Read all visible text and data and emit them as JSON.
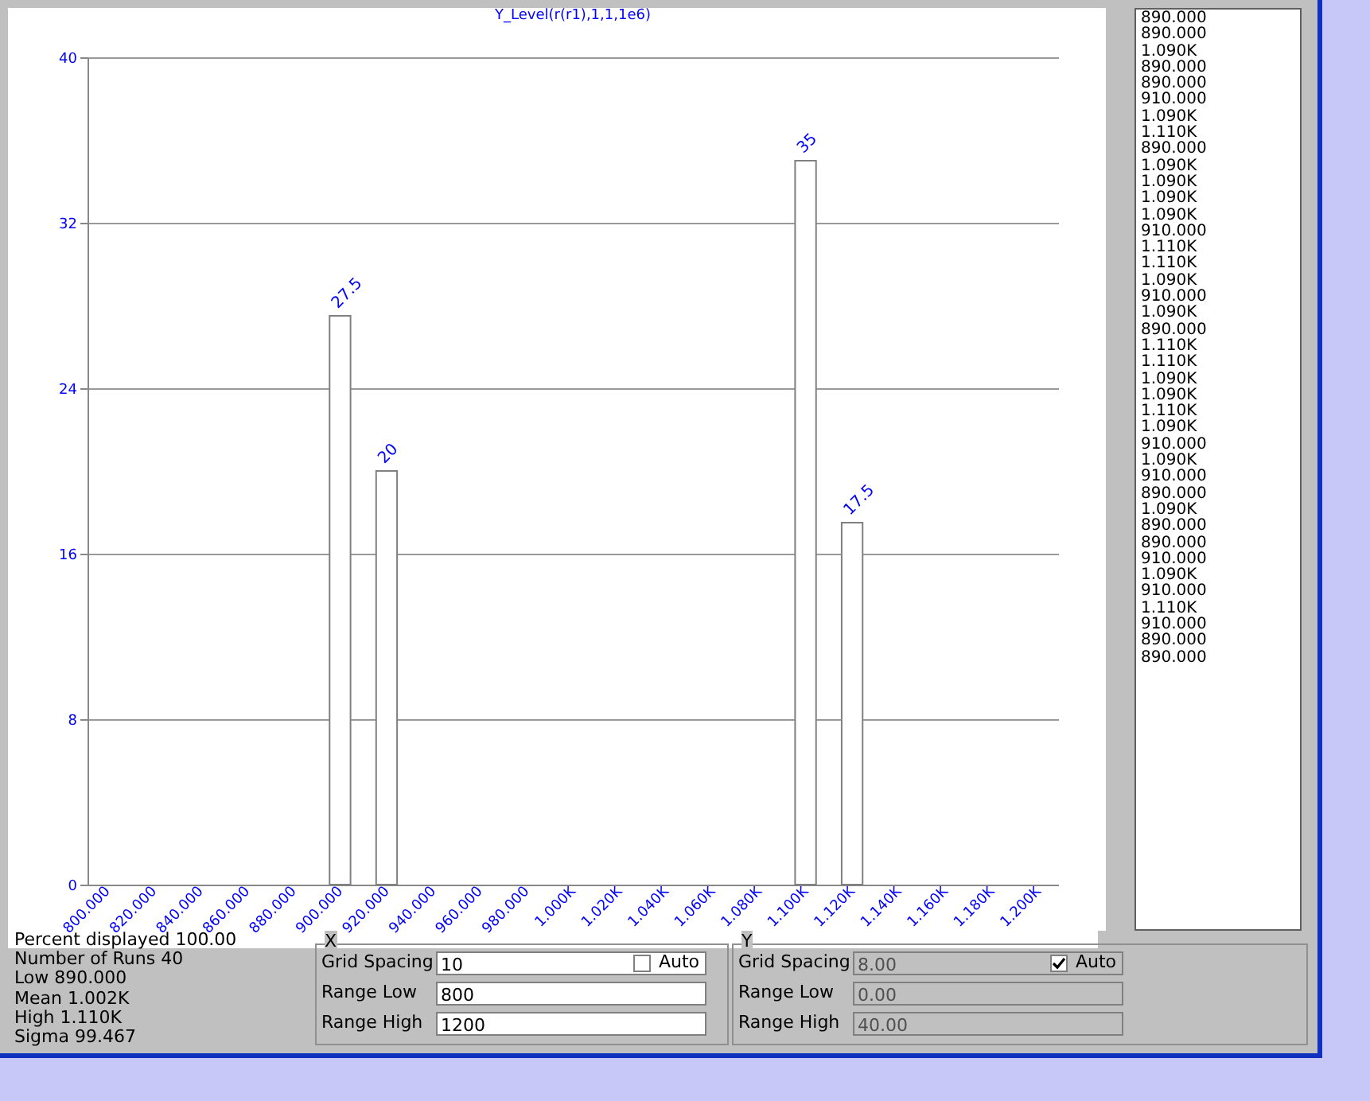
{
  "chart_data": {
    "type": "bar",
    "title": "Y_Level(r(r1),1,1,1e6)",
    "categories": [
      "800.000",
      "820.000",
      "840.000",
      "860.000",
      "880.000",
      "900.000",
      "920.000",
      "940.000",
      "960.000",
      "980.000",
      "1.000K",
      "1.020K",
      "1.040K",
      "1.060K",
      "1.080K",
      "1.100K",
      "1.120K",
      "1.140K",
      "1.160K",
      "1.180K",
      "1.200K"
    ],
    "values": [
      0,
      0,
      0,
      0,
      0,
      27.5,
      20,
      0,
      0,
      0,
      0,
      0,
      0,
      0,
      0,
      35,
      17.5,
      0,
      0,
      0,
      0
    ],
    "value_labels": [
      null,
      null,
      null,
      null,
      null,
      "27.5",
      "20",
      null,
      null,
      null,
      null,
      null,
      null,
      null,
      null,
      "35",
      "17.5",
      null,
      null,
      null,
      null
    ],
    "color": "#ffffff",
    "ylim": [
      0,
      40
    ],
    "yticks": [
      0,
      8,
      16,
      24,
      32,
      40
    ],
    "grid": "y",
    "annotations": [
      "Percent displayed 100.00",
      "Number of Runs 40",
      "Low 890.000",
      "Mean 1.002K",
      "High 1.110K",
      "Sigma 99.467",
      "X",
      "Grid Spacing",
      "10",
      "Range Low",
      "800",
      "Range High",
      "1200",
      "Auto",
      "Y",
      "Grid Spacing",
      "8.00",
      "Range Low",
      "0.00",
      "Range High",
      "40.00",
      "Auto",
      "890.000",
      "890.000",
      "1.090K",
      "890.000",
      "890.000",
      "910.000",
      "1.090K",
      "1.110K",
      "890.000",
      "1.090K",
      "1.090K",
      "1.090K",
      "1.090K",
      "910.000",
      "1.110K",
      "1.110K",
      "1.090K",
      "910.000",
      "1.090K",
      "890.000",
      "1.110K",
      "1.110K",
      "1.090K",
      "1.090K",
      "1.110K",
      "1.090K",
      "910.000",
      "1.090K",
      "910.000",
      "890.000",
      "1.090K",
      "890.000",
      "890.000",
      "910.000",
      "1.090K",
      "910.000",
      "1.110K",
      "910.000",
      "890.000",
      "890.000"
    ]
  }
}
